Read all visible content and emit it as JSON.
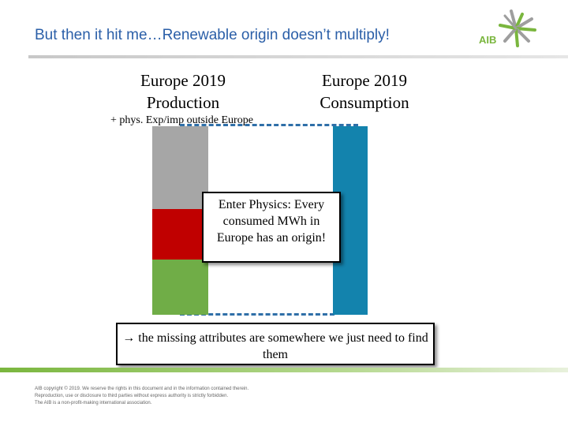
{
  "title": "But then it hit me…Renewable origin doesn’t multiply!",
  "logo": {
    "text": "AIB",
    "icon": "aib-starburst-logo"
  },
  "production_heading": [
    "Europe 2019",
    "Production"
  ],
  "consumption_heading": [
    "Europe 2019",
    "Consumption"
  ],
  "production_note": "+ phys. Exp/imp outside Europe",
  "colors": {
    "grey": "#a6a6a6",
    "red": "#c00000",
    "green": "#70ad47",
    "blue": "#1383ad",
    "title": "#2b5fa8",
    "dash": "#2f6fa8"
  },
  "callout_physics": "Enter Physics: Every consumed MWh in Europe has an origin!",
  "callout_missing": "the missing attributes are somewhere we just need to find them",
  "arrow_symbol": "→",
  "footer": [
    "AIB copyright © 2019. We reserve the rights in this document and in the information contained therein.",
    "Reproduction, use or disclosure to third parties without express authority is strictly forbidden.",
    "The AIB is a non-profit-making international association."
  ]
}
